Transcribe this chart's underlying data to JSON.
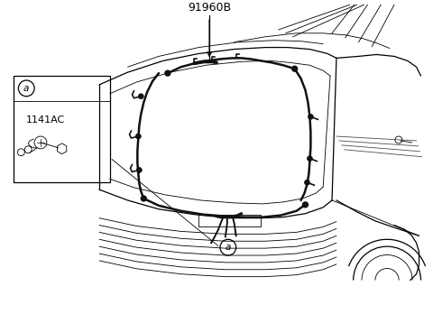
{
  "background_color": "#ffffff",
  "line_color": "#000000",
  "label_91960B": "91960B",
  "label_1141AC": "1141AC",
  "label_a": "a",
  "fig_width": 4.8,
  "fig_height": 3.48,
  "dpi": 100
}
